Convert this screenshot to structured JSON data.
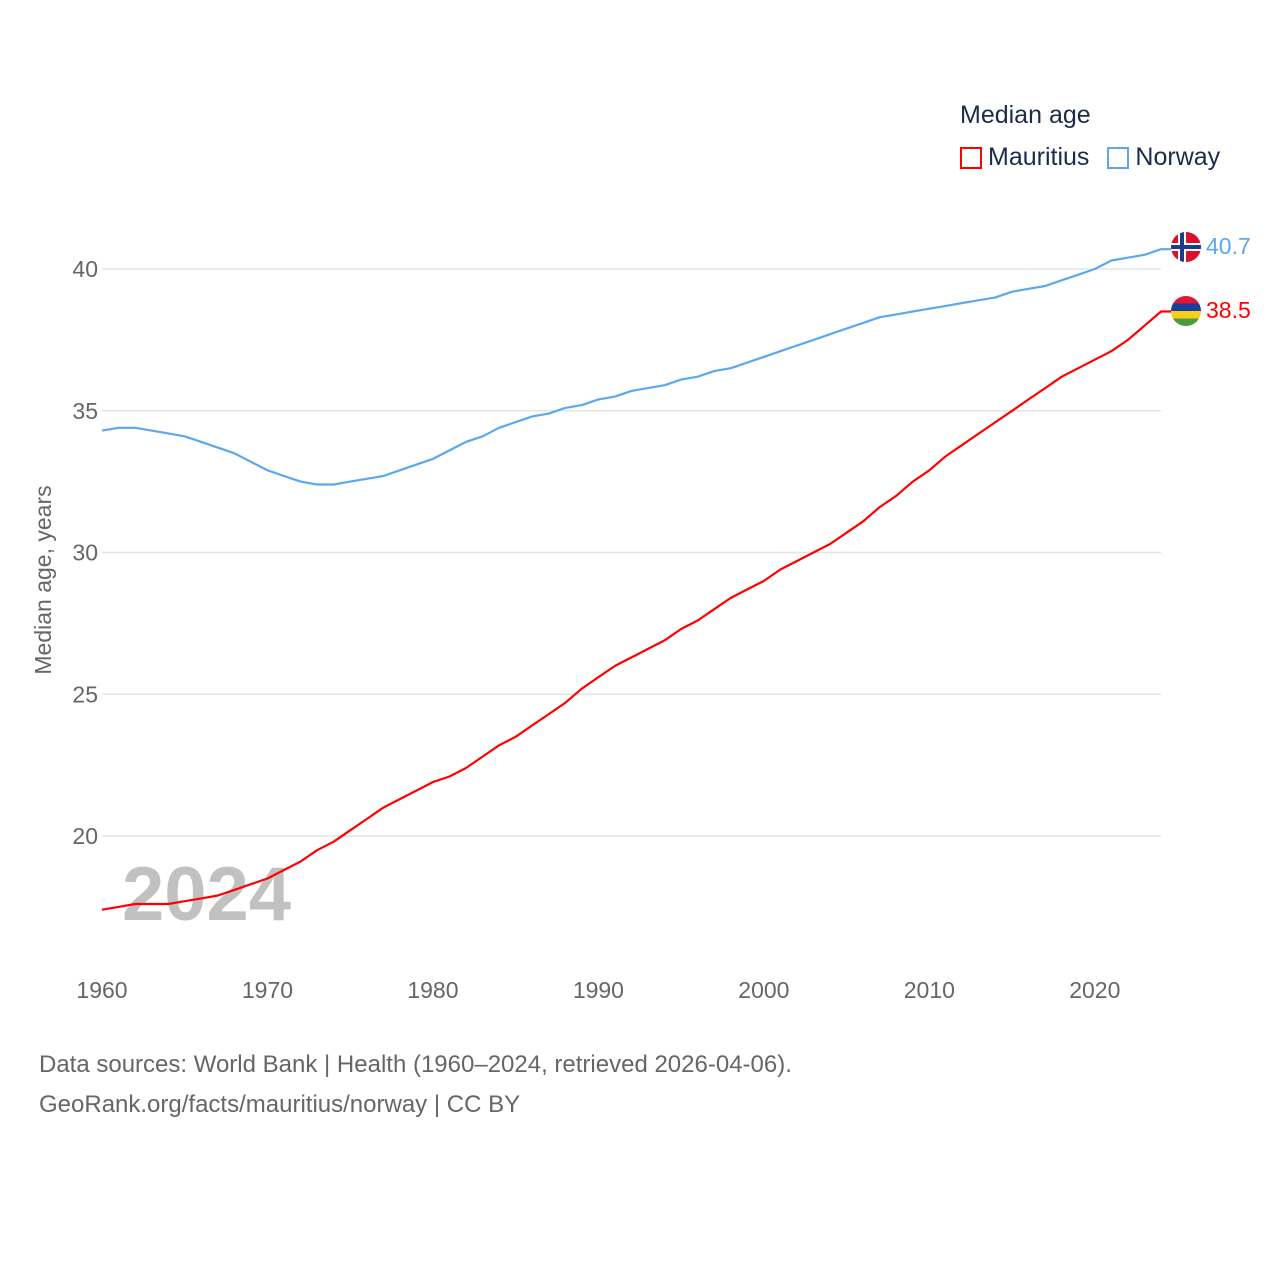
{
  "chart_data": {
    "type": "line",
    "title": "Median age",
    "xlabel": "",
    "ylabel": "Median age, years",
    "xlim": [
      1960,
      2024
    ],
    "ylim": [
      16.5,
      42
    ],
    "grid": true,
    "legend_position": "top-right",
    "x_ticks": [
      "1960",
      "1970",
      "1980",
      "1990",
      "2000",
      "2010",
      "2020"
    ],
    "y_ticks": [
      "20",
      "25",
      "30",
      "35",
      "40"
    ],
    "year_watermark": "2024",
    "x": [
      1960,
      1961,
      1962,
      1963,
      1964,
      1965,
      1966,
      1967,
      1968,
      1969,
      1970,
      1971,
      1972,
      1973,
      1974,
      1975,
      1976,
      1977,
      1978,
      1979,
      1980,
      1981,
      1982,
      1983,
      1984,
      1985,
      1986,
      1987,
      1988,
      1989,
      1990,
      1991,
      1992,
      1993,
      1994,
      1995,
      1996,
      1997,
      1998,
      1999,
      2000,
      2001,
      2002,
      2003,
      2004,
      2005,
      2006,
      2007,
      2008,
      2009,
      2010,
      2011,
      2012,
      2013,
      2014,
      2015,
      2016,
      2017,
      2018,
      2019,
      2020,
      2021,
      2022,
      2023,
      2024
    ],
    "series": [
      {
        "name": "Mauritius",
        "color": "#ff0000",
        "end_label": "38.5",
        "values": [
          17.4,
          17.5,
          17.6,
          17.6,
          17.6,
          17.7,
          17.8,
          17.9,
          18.1,
          18.3,
          18.5,
          18.8,
          19.1,
          19.5,
          19.8,
          20.2,
          20.6,
          21.0,
          21.3,
          21.6,
          21.9,
          22.1,
          22.4,
          22.8,
          23.2,
          23.5,
          23.9,
          24.3,
          24.7,
          25.2,
          25.6,
          26.0,
          26.3,
          26.6,
          26.9,
          27.3,
          27.6,
          28.0,
          28.4,
          28.7,
          29.0,
          29.4,
          29.7,
          30.0,
          30.3,
          30.7,
          31.1,
          31.6,
          32.0,
          32.5,
          32.9,
          33.4,
          33.8,
          34.2,
          34.6,
          35.0,
          35.4,
          35.8,
          36.2,
          36.5,
          36.8,
          37.1,
          37.5,
          38.0,
          38.5
        ]
      },
      {
        "name": "Norway",
        "color": "#5ba8ee",
        "end_label": "40.7",
        "values": [
          34.3,
          34.4,
          34.4,
          34.3,
          34.2,
          34.1,
          33.9,
          33.7,
          33.5,
          33.2,
          32.9,
          32.7,
          32.5,
          32.4,
          32.4,
          32.5,
          32.6,
          32.7,
          32.9,
          33.1,
          33.3,
          33.6,
          33.9,
          34.1,
          34.4,
          34.6,
          34.8,
          34.9,
          35.1,
          35.2,
          35.4,
          35.5,
          35.7,
          35.8,
          35.9,
          36.1,
          36.2,
          36.4,
          36.5,
          36.7,
          36.9,
          37.1,
          37.3,
          37.5,
          37.7,
          37.9,
          38.1,
          38.3,
          38.4,
          38.5,
          38.6,
          38.7,
          38.8,
          38.9,
          39.0,
          39.2,
          39.3,
          39.4,
          39.6,
          39.8,
          40.0,
          40.3,
          40.4,
          40.5,
          40.7
        ]
      }
    ]
  },
  "footer": {
    "line1": "Data sources: World Bank | Health (1960–2024, retrieved 2026-04-06).",
    "line2": "GeoRank.org/facts/mauritius/norway | CC BY"
  }
}
